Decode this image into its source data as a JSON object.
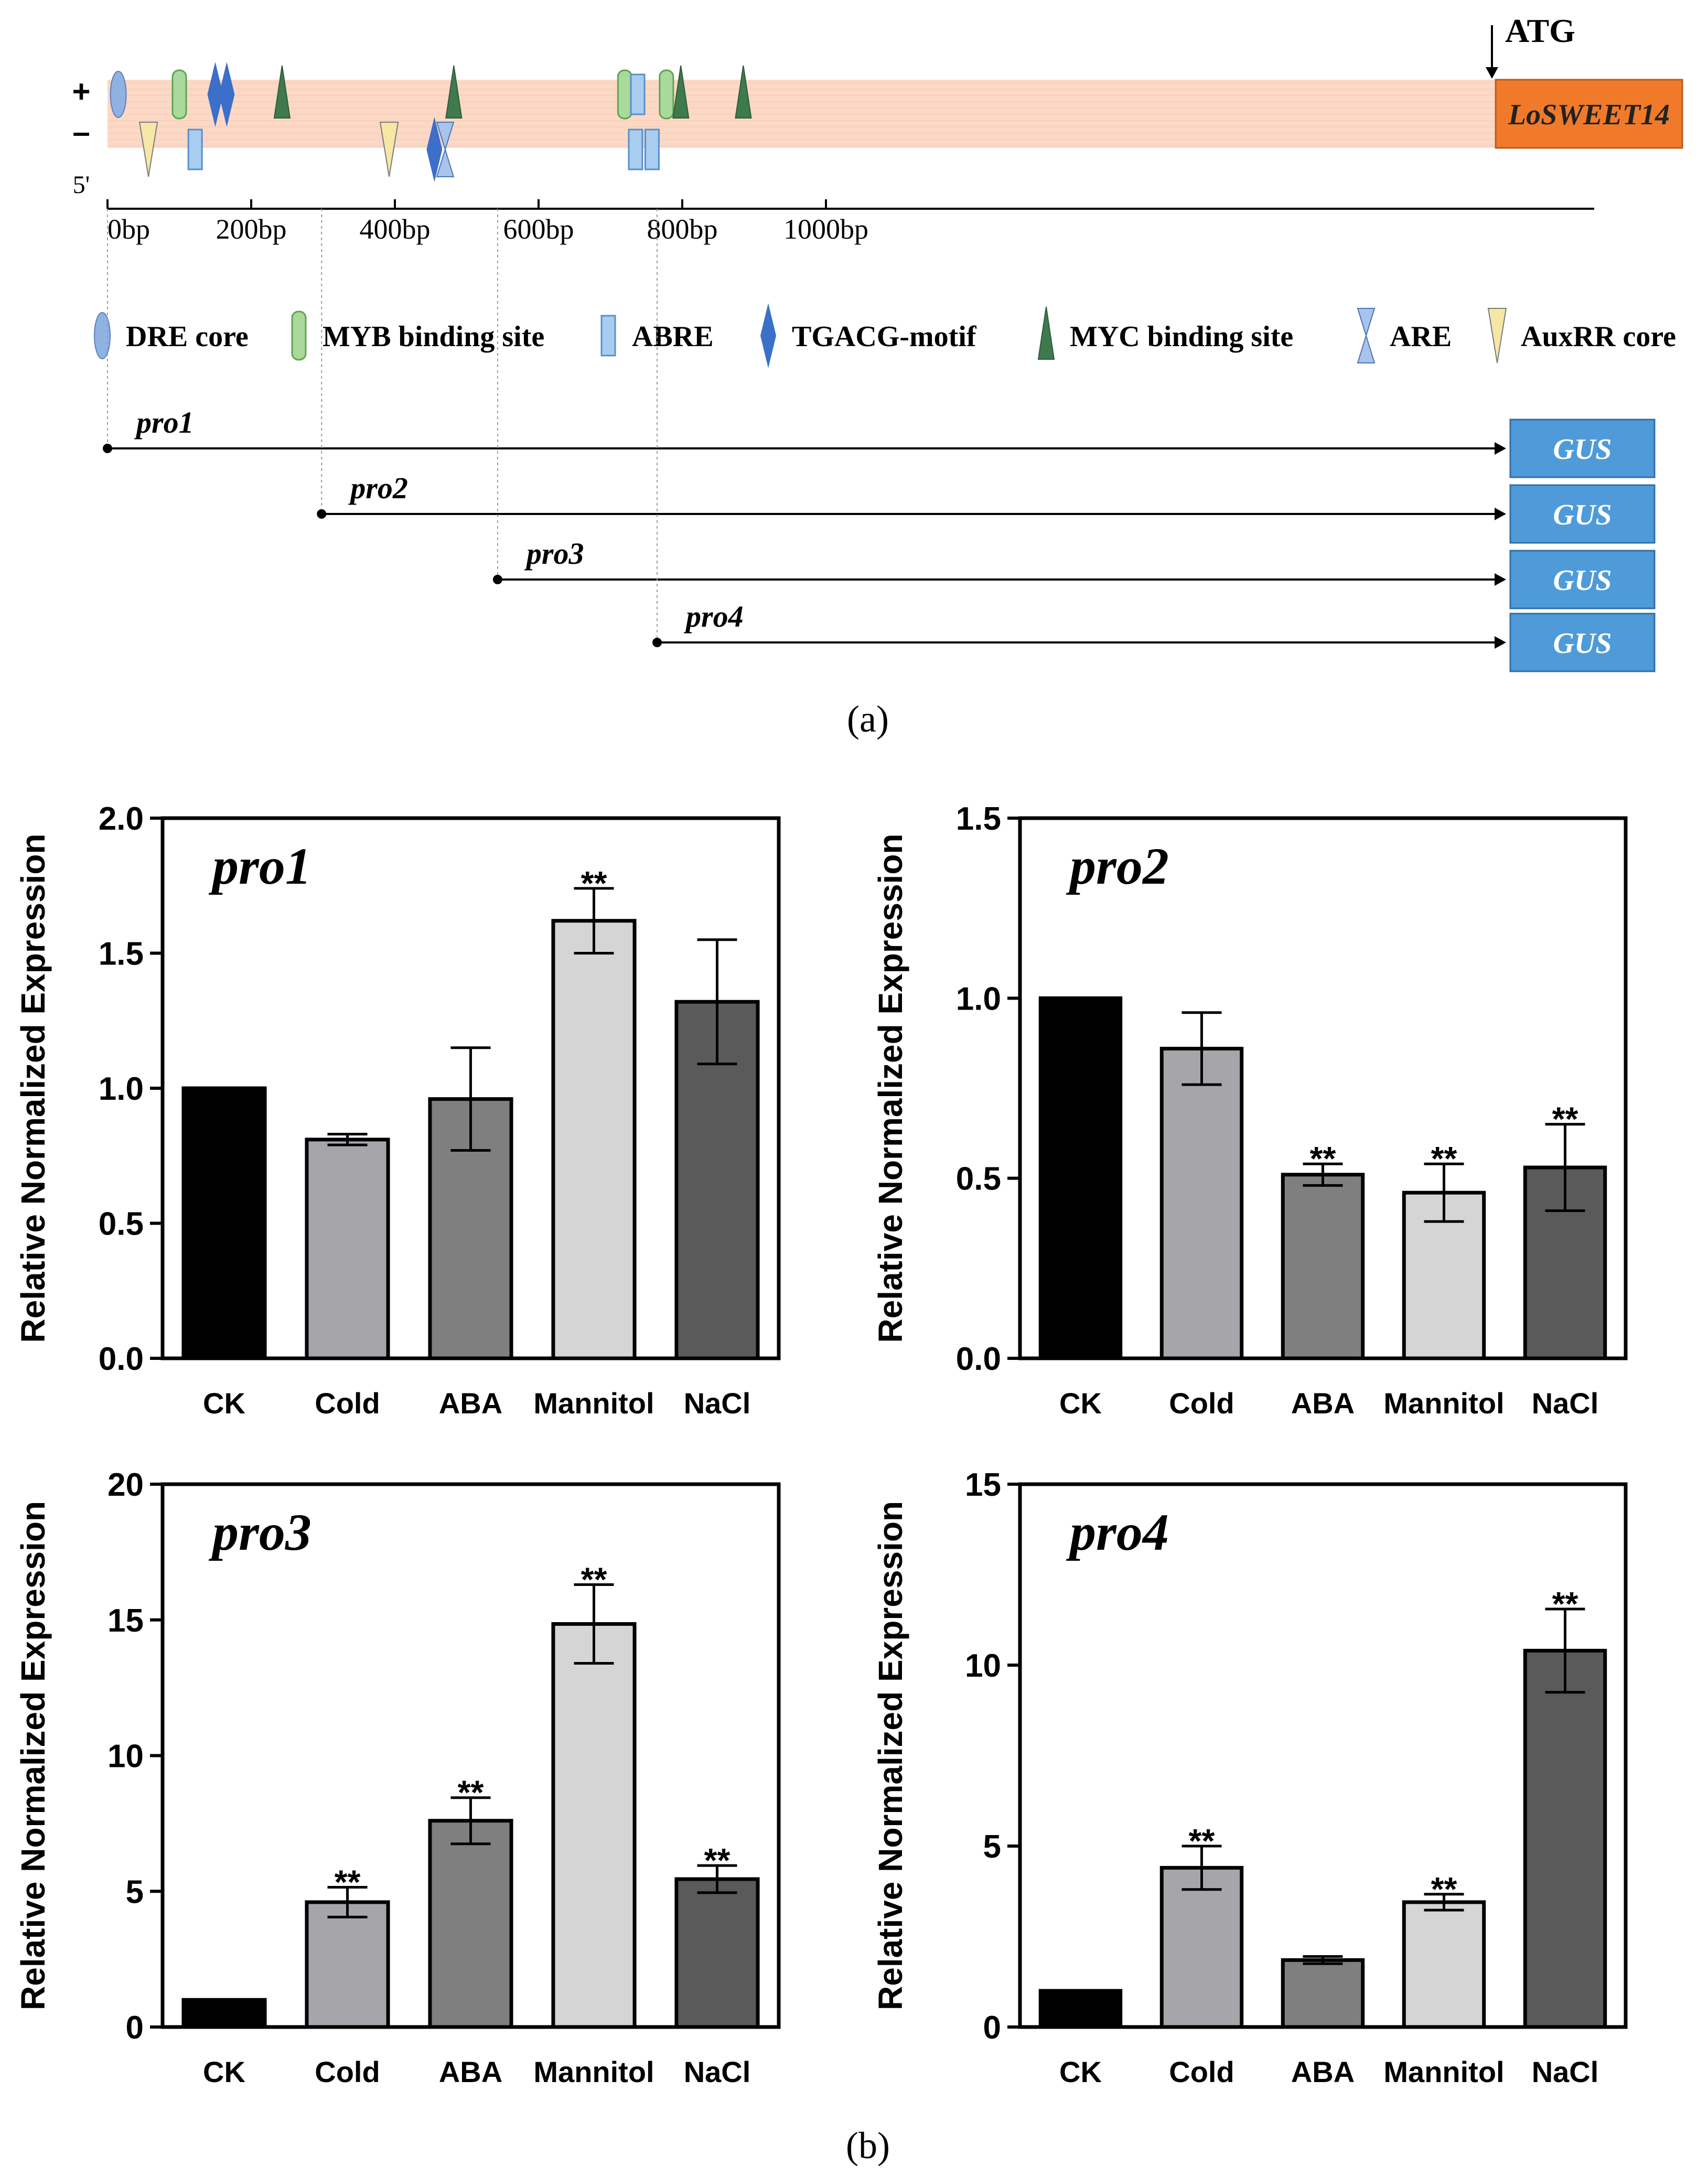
{
  "panel_a": {
    "atg_label": "ATG",
    "gene_label": "LoSWEET14",
    "strand_plus": "+",
    "strand_minus": "–",
    "five_prime": "5'",
    "axis_ticks": [
      "0bp",
      "200bp",
      "400bp",
      "600bp",
      "800bp",
      "1000bp"
    ],
    "legend": [
      {
        "key": "dre",
        "label": "DRE core",
        "color": "#8fb2e3"
      },
      {
        "key": "myb",
        "label": "MYB binding site",
        "color": "#a9d99b"
      },
      {
        "key": "abre",
        "label": "ABRE",
        "color": "#a8cdf0"
      },
      {
        "key": "tgacg",
        "label": "TGACG-motif",
        "color": "#3b6fc9"
      },
      {
        "key": "myc",
        "label": "MYC binding site",
        "color": "#3f7a4e"
      },
      {
        "key": "are",
        "label": "ARE",
        "color": "#a9c4ec"
      },
      {
        "key": "auxrr",
        "label": "AuxRR core",
        "color": "#f6e7a6"
      }
    ],
    "elements_bp": [
      {
        "type": "dre",
        "strand": "+",
        "bp": 15
      },
      {
        "type": "myb",
        "strand": "+",
        "bp": 100
      },
      {
        "type": "tgacg",
        "strand": "+",
        "bp": 150
      },
      {
        "type": "tgacg",
        "strand": "+",
        "bp": 166
      },
      {
        "type": "myc",
        "strand": "+",
        "bp": 243
      },
      {
        "type": "myc",
        "strand": "+",
        "bp": 482
      },
      {
        "type": "myb",
        "strand": "+",
        "bp": 720
      },
      {
        "type": "abre",
        "strand": "+",
        "bp": 738
      },
      {
        "type": "myb",
        "strand": "+",
        "bp": 778
      },
      {
        "type": "myc",
        "strand": "+",
        "bp": 798
      },
      {
        "type": "myc",
        "strand": "+",
        "bp": 885
      },
      {
        "type": "auxrr",
        "strand": "-",
        "bp": 57
      },
      {
        "type": "abre",
        "strand": "-",
        "bp": 122
      },
      {
        "type": "auxrr",
        "strand": "-",
        "bp": 392
      },
      {
        "type": "tgacg",
        "strand": "-",
        "bp": 455
      },
      {
        "type": "are",
        "strand": "-",
        "bp": 470
      },
      {
        "type": "abre",
        "strand": "-",
        "bp": 735
      },
      {
        "type": "abre",
        "strand": "-",
        "bp": 758
      }
    ],
    "constructs": [
      {
        "name": "pro1",
        "start_bp": 0,
        "reporter": "GUS"
      },
      {
        "name": "pro2",
        "start_bp": 298,
        "reporter": "GUS"
      },
      {
        "name": "pro3",
        "start_bp": 543,
        "reporter": "GUS"
      },
      {
        "name": "pro4",
        "start_bp": 765,
        "reporter": "GUS"
      }
    ],
    "caption": "(a)"
  },
  "panel_b_caption": "(b)",
  "colors": {
    "promoter_fill": "#fbd9c6",
    "gene_fill": "#f07a2a",
    "gus_fill": "#4f9bd9",
    "bar_colors": [
      "#000000",
      "#a6a6aa",
      "#7f7f7f",
      "#d5d5d5",
      "#5a5a5a"
    ]
  },
  "chart_data": [
    {
      "type": "bar",
      "title": "pro1",
      "ylabel": "Relative Normalized Expression",
      "xlabel": "",
      "categories": [
        "CK",
        "Cold",
        "ABA",
        "Mannitol",
        "NaCl"
      ],
      "values": [
        1.0,
        0.81,
        0.96,
        1.62,
        1.32
      ],
      "errors": [
        0.0,
        0.02,
        0.19,
        0.12,
        0.23
      ],
      "significance": [
        "",
        "",
        "",
        "**",
        ""
      ],
      "ylim": [
        0,
        2.0
      ],
      "yticks": [
        "0.0",
        "0.5",
        "1.0",
        "1.5",
        "2.0"
      ]
    },
    {
      "type": "bar",
      "title": "pro2",
      "ylabel": "Relative Normalized Expression",
      "xlabel": "",
      "categories": [
        "CK",
        "Cold",
        "ABA",
        "Mannitol",
        "NaCl"
      ],
      "values": [
        1.0,
        0.86,
        0.51,
        0.46,
        0.53
      ],
      "errors": [
        0.0,
        0.1,
        0.03,
        0.08,
        0.12
      ],
      "significance": [
        "",
        "",
        "**",
        "**",
        "**"
      ],
      "ylim": [
        0,
        1.5
      ],
      "yticks": [
        "0.0",
        "0.5",
        "1.0",
        "1.5"
      ]
    },
    {
      "type": "bar",
      "title": "pro3",
      "ylabel": "Relative Normalized Expression",
      "xlabel": "",
      "categories": [
        "CK",
        "Cold",
        "ABA",
        "Mannitol",
        "NaCl"
      ],
      "values": [
        1.0,
        4.6,
        7.6,
        14.85,
        5.45
      ],
      "errors": [
        0.0,
        0.55,
        0.85,
        1.45,
        0.5
      ],
      "significance": [
        "",
        "**",
        "**",
        "**",
        "**"
      ],
      "ylim": [
        0,
        20
      ],
      "yticks": [
        "0",
        "5",
        "10",
        "15",
        "20"
      ]
    },
    {
      "type": "bar",
      "title": "pro4",
      "ylabel": "Relative Normalized Expression",
      "xlabel": "",
      "categories": [
        "CK",
        "Cold",
        "ABA",
        "Mannitol",
        "NaCl"
      ],
      "values": [
        1.0,
        4.4,
        1.85,
        3.45,
        10.4
      ],
      "errors": [
        0.0,
        0.6,
        0.1,
        0.22,
        1.15
      ],
      "significance": [
        "",
        "**",
        "",
        "**",
        "**"
      ],
      "ylim": [
        0,
        15
      ],
      "yticks": [
        "0",
        "5",
        "10",
        "15"
      ]
    }
  ]
}
